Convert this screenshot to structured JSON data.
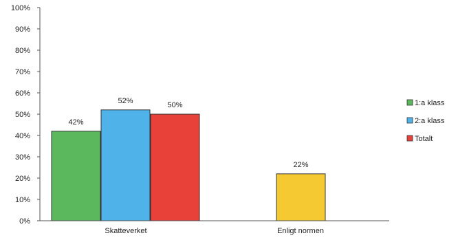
{
  "chart_data": {
    "type": "bar",
    "title": "",
    "xlabel": "",
    "ylabel": "",
    "ylim": [
      0,
      100
    ],
    "y_ticks": [
      "0%",
      "10%",
      "20%",
      "30%",
      "40%",
      "50%",
      "60%",
      "70%",
      "80%",
      "90%",
      "100%"
    ],
    "grid": false,
    "legend_position": "right",
    "categories": [
      "Skatteverket",
      "Enligt normen"
    ],
    "bars": [
      {
        "category": "Skatteverket",
        "series": "1:a klass",
        "value": 42,
        "label": "42%",
        "color": "#5cb85c"
      },
      {
        "category": "Skatteverket",
        "series": "2:a klass",
        "value": 52,
        "label": "52%",
        "color": "#4fb3ea"
      },
      {
        "category": "Skatteverket",
        "series": "Totalt",
        "value": 50,
        "label": "50%",
        "color": "#e8413a"
      },
      {
        "category": "Enligt normen",
        "series": "",
        "value": 22,
        "label": "22%",
        "color": "#f5c932"
      }
    ],
    "legend": [
      {
        "name": "1:a klass",
        "color": "#5cb85c"
      },
      {
        "name": "2:a klass",
        "color": "#4fb3ea"
      },
      {
        "name": "Totalt",
        "color": "#e8413a"
      }
    ]
  }
}
